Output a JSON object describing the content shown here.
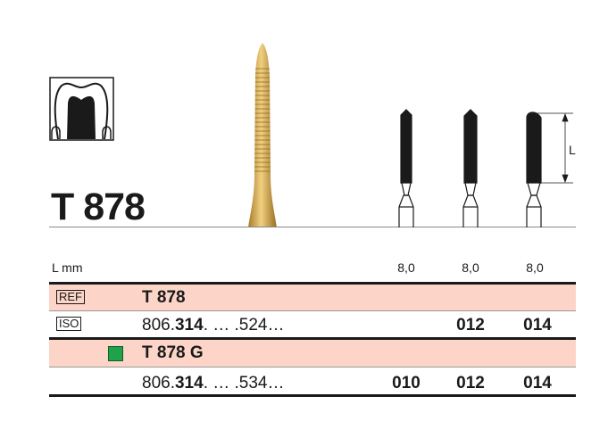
{
  "product": {
    "title": "T 878",
    "dimension_label": "L"
  },
  "table": {
    "length_label": "L mm",
    "lengths": [
      "8,0",
      "8,0",
      "8,0"
    ],
    "ref_badge": "REF",
    "iso_badge": "ISO",
    "rows": [
      {
        "name": "T 878",
        "iso_prefix": "806.",
        "iso_bold": "314",
        "iso_suffix": ". … .524…",
        "sizes": [
          "",
          "012",
          "014"
        ]
      },
      {
        "name": "T 878 G",
        "marker_color": "#1fa24a",
        "iso_prefix": "806.",
        "iso_bold": "314",
        "iso_suffix": ". … .534…",
        "sizes": [
          "010",
          "012",
          "014"
        ]
      }
    ]
  },
  "colors": {
    "row_highlight": "#fcd5c8",
    "gold": "#c89a3c",
    "green_marker": "#1fa24a"
  }
}
